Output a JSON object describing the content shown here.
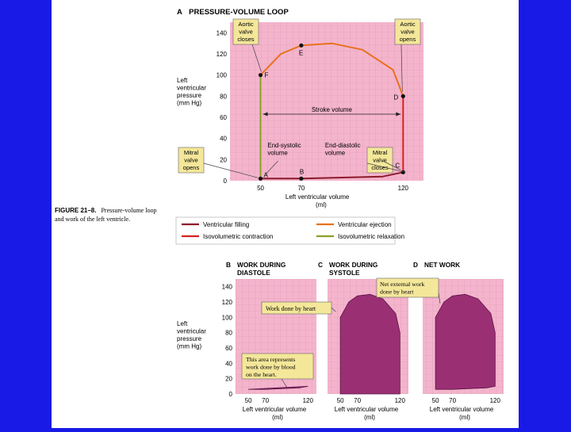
{
  "figure": {
    "caption_label": "FIGURE 21–8.",
    "caption_text_1": "Pressure-volume loop",
    "caption_text_2": "and work of the left ventricle."
  },
  "colors": {
    "filling": "#8b1a2a",
    "ejection": "#e8721c",
    "isovol_contraction": "#d42020",
    "isovol_relaxation": "#8aa024",
    "callout_fill": "#f4e79a",
    "work_area": "#9b2f74",
    "plot_bg": "#f4b4cc"
  },
  "chart_data": [
    {
      "type": "line",
      "panel": "A",
      "title": "PRESSURE-VOLUME LOOP",
      "ylabel": [
        "Left",
        "ventricular",
        "pressure",
        "(mm Hg)"
      ],
      "xlabel": [
        "Left ventricular volume",
        "(ml)"
      ],
      "y_ticks": [
        0,
        20,
        40,
        60,
        80,
        100,
        120,
        140
      ],
      "x_ticks": [
        50,
        70,
        120
      ],
      "xlim": [
        35,
        130
      ],
      "ylim": [
        0,
        150
      ],
      "grid": true,
      "series": [
        {
          "name": "Ventricular filling",
          "x": [
            50,
            70,
            110,
            120
          ],
          "y": [
            2,
            2,
            4,
            8
          ]
        },
        {
          "name": "Isovolumetric contraction",
          "x": [
            120,
            120
          ],
          "y": [
            8,
            80
          ]
        },
        {
          "name": "Ventricular ejection",
          "x": [
            120,
            115,
            100,
            85,
            70,
            60,
            55,
            50
          ],
          "y": [
            80,
            105,
            124,
            130,
            128,
            120,
            110,
            100
          ]
        },
        {
          "name": "Isovolumetric relaxation",
          "x": [
            50,
            50
          ],
          "y": [
            100,
            2
          ]
        }
      ],
      "points": [
        {
          "label": "A",
          "x": 50,
          "y": 2
        },
        {
          "label": "B",
          "x": 70,
          "y": 2
        },
        {
          "label": "C",
          "x": 120,
          "y": 8
        },
        {
          "label": "D",
          "x": 120,
          "y": 80
        },
        {
          "label": "E",
          "x": 70,
          "y": 128
        },
        {
          "label": "F",
          "x": 50,
          "y": 100
        }
      ],
      "annotations": {
        "aortic_closes": [
          "Aortic",
          "valve",
          "closes"
        ],
        "aortic_opens": [
          "Aortic",
          "valve",
          "opens"
        ],
        "mitral_opens": [
          "Mitral",
          "valve",
          "opens"
        ],
        "mitral_closes": [
          "Mitral",
          "valve",
          "closes"
        ],
        "stroke_volume": "Stroke volume",
        "end_systolic": [
          "End-systolic",
          "volume"
        ],
        "end_diastolic": [
          "End-diastolic",
          "volume"
        ]
      }
    },
    {
      "type": "area",
      "panel": "B",
      "title": [
        "WORK DURING",
        "DIASTOLE"
      ],
      "ylabel": [
        "Left",
        "ventricular",
        "pressure",
        "(mm Hg)"
      ],
      "xlabel": [
        "Left ventricular volume",
        "(ml)"
      ],
      "y_ticks": [
        0,
        20,
        40,
        60,
        80,
        100,
        120,
        140
      ],
      "x_ticks": [
        50,
        70,
        120
      ],
      "xlim": [
        35,
        130
      ],
      "ylim": [
        0,
        150
      ],
      "x": [
        50,
        70,
        110,
        120
      ],
      "y": [
        6,
        6,
        8,
        10
      ],
      "annotation": [
        "This area represents",
        "work done by blood",
        "on the heart."
      ]
    },
    {
      "type": "area",
      "panel": "C",
      "title": [
        "WORK DURING",
        "SYSTOLE"
      ],
      "xlabel": [
        "Left ventricular volume",
        "(ml)"
      ],
      "x_ticks": [
        50,
        70,
        120
      ],
      "xlim": [
        35,
        130
      ],
      "ylim": [
        0,
        150
      ],
      "x": [
        50,
        50,
        55,
        60,
        70,
        85,
        100,
        115,
        120,
        120
      ],
      "y": [
        0,
        100,
        110,
        120,
        128,
        130,
        124,
        105,
        80,
        0
      ],
      "annotation": "Work done by heart"
    },
    {
      "type": "area",
      "panel": "D",
      "title": "NET WORK",
      "xlabel": [
        "Left ventricular volume",
        "(ml)"
      ],
      "x_ticks": [
        50,
        70,
        120
      ],
      "xlim": [
        35,
        130
      ],
      "ylim": [
        0,
        150
      ],
      "x": [
        50,
        50,
        55,
        60,
        70,
        85,
        100,
        115,
        120,
        120,
        110,
        70
      ],
      "y": [
        6,
        100,
        110,
        120,
        128,
        130,
        124,
        105,
        80,
        10,
        8,
        6
      ],
      "annotation": [
        "Net external work",
        "done by heart"
      ]
    }
  ],
  "legend": [
    {
      "label": "Ventricular filling",
      "color": "#8b1a2a"
    },
    {
      "label": "Ventricular ejection",
      "color": "#e8721c"
    },
    {
      "label": "Isovolumetric contraction",
      "color": "#d42020"
    },
    {
      "label": "Isovolumetric relaxation",
      "color": "#8aa024"
    }
  ]
}
